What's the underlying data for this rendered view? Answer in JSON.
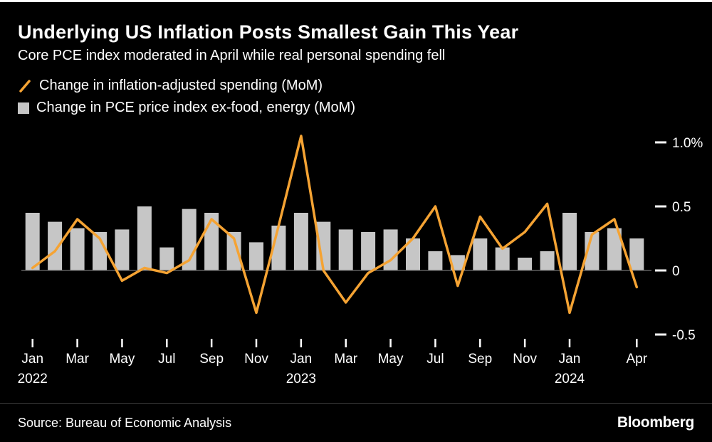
{
  "header": {
    "title": "Underlying US Inflation Posts Smallest Gain This Year",
    "subtitle": "Core PCE index moderated in April while real personal spending fell"
  },
  "legend": {
    "line_label": "Change in inflation-adjusted spending (MoM)",
    "bar_label": "Change in PCE price index ex-food, energy (MoM)"
  },
  "colors": {
    "background": "#000000",
    "line": "#F5A333",
    "bar": "#C6C6C6",
    "zero_line": "#5E5E5E",
    "text": "#FFFFFF"
  },
  "footer": {
    "source": "Source: Bureau of Economic Analysis",
    "brand": "Bloomberg"
  },
  "chart_data": {
    "type": "combo",
    "unit": "%",
    "grid": false,
    "legend_position": "top-left",
    "y_axis_side": "right",
    "ylim": [
      -0.6,
      1.15
    ],
    "x": [
      "Jan 2022",
      "Feb 2022",
      "Mar 2022",
      "Apr 2022",
      "May 2022",
      "Jun 2022",
      "Jul 2022",
      "Aug 2022",
      "Sep 2022",
      "Oct 2022",
      "Nov 2022",
      "Dec 2022",
      "Jan 2023",
      "Feb 2023",
      "Mar 2023",
      "Apr 2023",
      "May 2023",
      "Jun 2023",
      "Jul 2023",
      "Aug 2023",
      "Sep 2023",
      "Oct 2023",
      "Nov 2023",
      "Dec 2023",
      "Jan 2024",
      "Feb 2024",
      "Mar 2024",
      "Apr 2024"
    ],
    "series": [
      {
        "name": "Change in inflation-adjusted spending (MoM)",
        "type": "line",
        "color": "#F5A333",
        "values": [
          0.02,
          0.15,
          0.4,
          0.25,
          -0.08,
          0.02,
          -0.02,
          0.08,
          0.4,
          0.25,
          -0.33,
          0.35,
          1.05,
          0.0,
          -0.25,
          -0.02,
          0.08,
          0.25,
          0.5,
          -0.12,
          0.42,
          0.17,
          0.3,
          0.52,
          -0.33,
          0.28,
          0.4,
          -0.13
        ]
      },
      {
        "name": "Change in PCE price index ex-food, energy (MoM)",
        "type": "bar",
        "color": "#C6C6C6",
        "values": [
          0.45,
          0.38,
          0.33,
          0.3,
          0.32,
          0.5,
          0.18,
          0.48,
          0.45,
          0.3,
          0.22,
          0.35,
          0.45,
          0.38,
          0.32,
          0.3,
          0.32,
          0.25,
          0.15,
          0.12,
          0.25,
          0.18,
          0.1,
          0.15,
          0.45,
          0.3,
          0.33,
          0.25
        ]
      }
    ],
    "y_ticks": [
      {
        "value": 1.0,
        "label": "1.0%"
      },
      {
        "value": 0.5,
        "label": "0.5"
      },
      {
        "value": 0.0,
        "label": "0"
      },
      {
        "value": -0.5,
        "label": "-0.5"
      }
    ],
    "x_ticks": [
      {
        "index": 0,
        "month": "Jan",
        "year": "2022"
      },
      {
        "index": 2,
        "month": "Mar"
      },
      {
        "index": 4,
        "month": "May"
      },
      {
        "index": 6,
        "month": "Jul"
      },
      {
        "index": 8,
        "month": "Sep"
      },
      {
        "index": 10,
        "month": "Nov"
      },
      {
        "index": 12,
        "month": "Jan",
        "year": "2023"
      },
      {
        "index": 14,
        "month": "Mar"
      },
      {
        "index": 16,
        "month": "May"
      },
      {
        "index": 18,
        "month": "Jul"
      },
      {
        "index": 20,
        "month": "Sep"
      },
      {
        "index": 22,
        "month": "Nov"
      },
      {
        "index": 24,
        "month": "Jan",
        "year": "2024"
      },
      {
        "index": 27,
        "month": "Apr"
      }
    ]
  }
}
